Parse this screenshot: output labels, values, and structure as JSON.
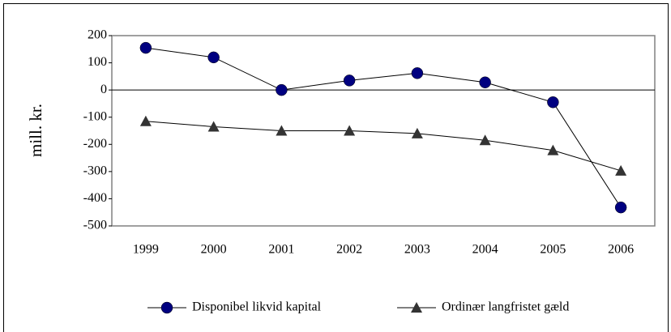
{
  "chart_data": {
    "type": "line",
    "y_label": "mill. kr.",
    "categories": [
      "1999",
      "2000",
      "2001",
      "2002",
      "2003",
      "2004",
      "2005",
      "2006"
    ],
    "series": [
      {
        "name": "Disponibel likvid kapital",
        "color": "#000080",
        "marker": "circle",
        "values": [
          155,
          120,
          0,
          35,
          62,
          28,
          -45,
          -432
        ]
      },
      {
        "name": "Ordinær langfristet gæld",
        "color": "#333333",
        "marker": "triangle",
        "values": [
          -115,
          -135,
          -150,
          -150,
          -160,
          -185,
          -222,
          -297
        ]
      }
    ],
    "ylim": [
      -500,
      200
    ],
    "yticks": [
      -500,
      -400,
      -300,
      -200,
      -100,
      0,
      100,
      200
    ],
    "grid": false,
    "legend": "bottom"
  }
}
